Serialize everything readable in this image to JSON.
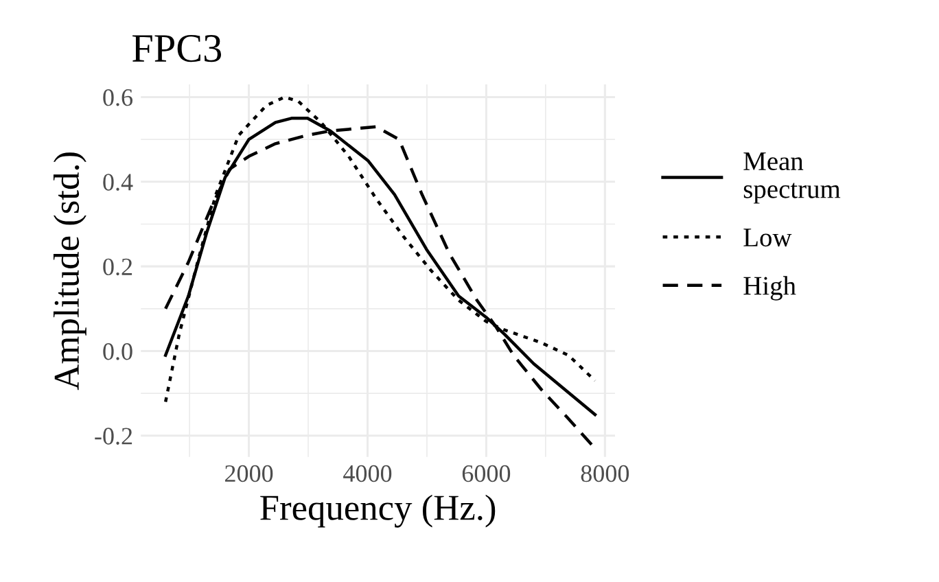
{
  "chart_data": {
    "type": "line",
    "title": "FPC3",
    "xlabel": "Frequency (Hz.)",
    "ylabel": "Amplitude (std.)",
    "xlim": [
      180,
      8170
    ],
    "ylim": [
      -0.25,
      0.63
    ],
    "xticks": [
      2000,
      4000,
      6000,
      8000
    ],
    "yticks": [
      -0.2,
      {
        "value": 0,
        "label": "0.0"
      },
      0.2,
      0.4,
      0.6
    ],
    "grid": true,
    "legend": "right",
    "marker": "none",
    "series": [
      {
        "name": "Mean\nspectrum",
        "color": "#000000",
        "line_style": "solid",
        "x": [
          596,
          981,
          1290,
          1599,
          2000,
          2448,
          2718,
          2988,
          3373,
          4006,
          4454,
          4994,
          5534,
          5997,
          6306,
          6800,
          7833
        ],
        "values": [
          -0.01,
          0.13,
          0.28,
          0.41,
          0.5,
          0.54,
          0.55,
          0.55,
          0.52,
          0.45,
          0.37,
          0.24,
          0.13,
          0.08,
          0.04,
          -0.03,
          -0.15
        ]
      },
      {
        "name": "Low",
        "color": "#000000",
        "line_style": "dotted",
        "x": [
          596,
          827,
          1136,
          1444,
          1830,
          2293,
          2602,
          2833,
          3219,
          3682,
          4145,
          4608,
          5071,
          5534,
          5997,
          6306,
          6923,
          7386,
          7833
        ],
        "values": [
          -0.12,
          0.04,
          0.21,
          0.37,
          0.51,
          0.58,
          0.6,
          0.59,
          0.54,
          0.46,
          0.36,
          0.27,
          0.19,
          0.12,
          0.07,
          0.05,
          0.02,
          -0.01,
          -0.07
        ]
      },
      {
        "name": "High",
        "color": "#000000",
        "line_style": "dashed",
        "x": [
          596,
          981,
          1367,
          1676,
          2000,
          2448,
          2988,
          3373,
          4145,
          4531,
          4917,
          5380,
          5843,
          6151,
          6460,
          6923,
          7386,
          7833
        ],
        "values": [
          0.1,
          0.21,
          0.34,
          0.43,
          0.46,
          0.49,
          0.51,
          0.52,
          0.53,
          0.5,
          0.37,
          0.23,
          0.12,
          0.06,
          -0.01,
          -0.09,
          -0.16,
          -0.23
        ]
      }
    ]
  }
}
